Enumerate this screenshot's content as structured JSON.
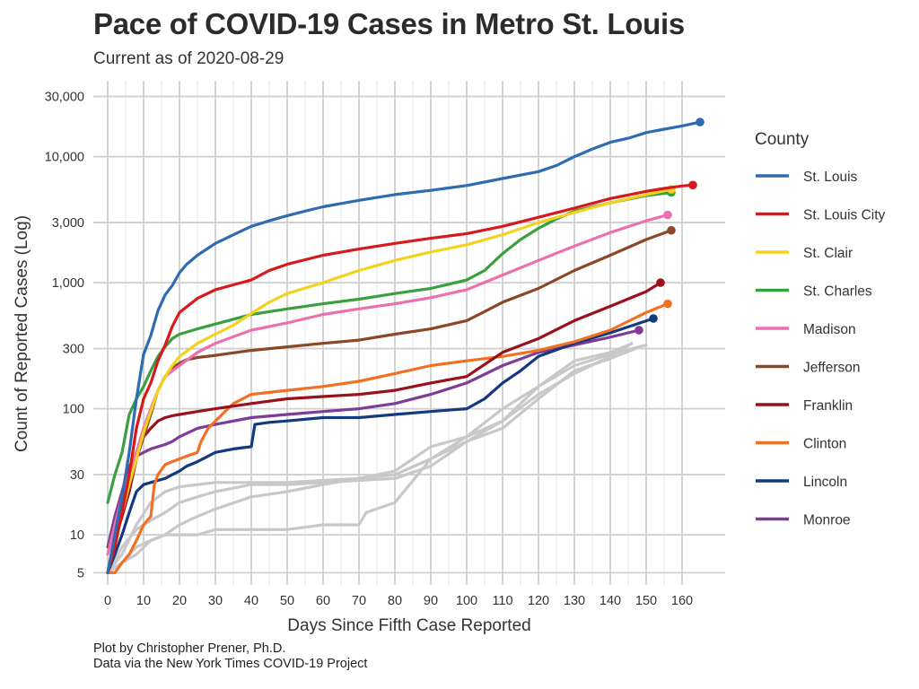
{
  "title": "Pace of COVID-19 Cases in Metro St. Louis",
  "subtitle": "Current as of 2020-08-29",
  "caption": [
    "Plot by Christopher Prener, Ph.D.",
    "Data via the New York Times COVID-19 Project"
  ],
  "chart_data": {
    "type": "line",
    "title": "Pace of COVID-19 Cases in Metro St. Louis",
    "subtitle": "Current as of 2020-08-29",
    "xlabel": "Days Since Fifth Case Reported",
    "ylabel": "Count of Reported Cases (Log)",
    "y_scale": "log",
    "xlim": [
      -4,
      172
    ],
    "ylim": [
      4,
      40000
    ],
    "x_ticks": [
      0,
      10,
      20,
      30,
      40,
      50,
      60,
      70,
      80,
      90,
      100,
      110,
      120,
      130,
      140,
      150,
      160
    ],
    "y_ticks": [
      5,
      10,
      30,
      100,
      300,
      1000,
      3000,
      10000,
      30000
    ],
    "y_tick_labels": [
      "5",
      "10",
      "30",
      "100",
      "300",
      "1,000",
      "3,000",
      "10,000",
      "30,000"
    ],
    "grid": true,
    "legend_title": "County",
    "legend_position": "right",
    "series": [
      {
        "name": "St. Louis",
        "color": "#2e6bb0",
        "x": [
          0,
          2,
          4,
          6,
          8,
          10,
          12,
          14,
          16,
          18,
          20,
          22,
          25,
          30,
          35,
          40,
          45,
          50,
          55,
          60,
          70,
          80,
          90,
          100,
          110,
          120,
          125,
          130,
          135,
          140,
          145,
          150,
          155,
          160,
          165
        ],
        "y": [
          5,
          10,
          20,
          45,
          120,
          270,
          380,
          600,
          800,
          950,
          1200,
          1400,
          1650,
          2050,
          2400,
          2800,
          3100,
          3400,
          3700,
          4000,
          4500,
          5000,
          5400,
          5900,
          6700,
          7600,
          8500,
          10000,
          11500,
          13000,
          14000,
          15500,
          16500,
          17500,
          18800
        ]
      },
      {
        "name": "St. Louis City",
        "color": "#d7191c",
        "x": [
          0,
          2,
          4,
          6,
          8,
          10,
          12,
          14,
          16,
          18,
          20,
          25,
          30,
          40,
          45,
          50,
          60,
          70,
          80,
          90,
          100,
          110,
          120,
          130,
          140,
          150,
          155,
          160,
          163
        ],
        "y": [
          5,
          8,
          15,
          30,
          70,
          120,
          160,
          240,
          320,
          450,
          580,
          750,
          880,
          1050,
          1250,
          1400,
          1650,
          1850,
          2050,
          2250,
          2450,
          2800,
          3300,
          3900,
          4650,
          5300,
          5600,
          5850,
          5950
        ]
      },
      {
        "name": "St. Clair",
        "color": "#f2d21d",
        "x": [
          0,
          2,
          4,
          6,
          8,
          10,
          12,
          14,
          16,
          18,
          20,
          25,
          30,
          35,
          40,
          45,
          50,
          60,
          70,
          80,
          90,
          100,
          110,
          120,
          130,
          140,
          150,
          157
        ],
        "y": [
          5,
          9,
          15,
          25,
          40,
          65,
          95,
          140,
          180,
          220,
          260,
          330,
          390,
          460,
          570,
          700,
          820,
          1000,
          1250,
          1500,
          1750,
          2000,
          2400,
          3000,
          3600,
          4300,
          5000,
          5500
        ]
      },
      {
        "name": "St. Charles",
        "color": "#3a9f3e",
        "x": [
          0,
          2,
          4,
          6,
          8,
          10,
          12,
          14,
          16,
          18,
          20,
          25,
          30,
          40,
          50,
          60,
          70,
          80,
          90,
          100,
          105,
          110,
          115,
          120,
          125,
          130,
          140,
          150,
          157
        ],
        "y": [
          18,
          30,
          45,
          90,
          120,
          150,
          200,
          260,
          310,
          360,
          390,
          430,
          470,
          560,
          620,
          680,
          740,
          820,
          900,
          1050,
          1250,
          1700,
          2200,
          2700,
          3200,
          3700,
          4300,
          4900,
          5200
        ]
      },
      {
        "name": "Madison",
        "color": "#ec6fae",
        "x": [
          0,
          2,
          4,
          6,
          8,
          10,
          12,
          14,
          16,
          18,
          20,
          25,
          30,
          40,
          50,
          60,
          70,
          80,
          90,
          100,
          110,
          120,
          130,
          140,
          150,
          156
        ],
        "y": [
          7,
          12,
          20,
          30,
          45,
          70,
          100,
          140,
          180,
          200,
          220,
          280,
          330,
          420,
          480,
          560,
          620,
          680,
          760,
          880,
          1150,
          1500,
          1950,
          2500,
          3100,
          3450
        ]
      },
      {
        "name": "Jefferson",
        "color": "#8b4726",
        "x": [
          0,
          2,
          4,
          6,
          8,
          10,
          12,
          14,
          16,
          18,
          20,
          22,
          25,
          30,
          40,
          50,
          60,
          70,
          80,
          90,
          100,
          105,
          110,
          120,
          130,
          140,
          150,
          157
        ],
        "y": [
          5,
          9,
          18,
          30,
          45,
          60,
          90,
          140,
          180,
          210,
          230,
          245,
          255,
          265,
          290,
          310,
          330,
          350,
          390,
          430,
          500,
          590,
          700,
          900,
          1250,
          1650,
          2200,
          2600
        ]
      },
      {
        "name": "Franklin",
        "color": "#98111b",
        "x": [
          0,
          2,
          4,
          6,
          8,
          10,
          12,
          14,
          16,
          18,
          20,
          25,
          30,
          40,
          50,
          60,
          70,
          80,
          90,
          100,
          110,
          120,
          130,
          140,
          150,
          154
        ],
        "y": [
          5,
          9,
          14,
          22,
          40,
          60,
          70,
          80,
          85,
          88,
          90,
          95,
          100,
          110,
          120,
          125,
          130,
          140,
          160,
          180,
          280,
          360,
          500,
          650,
          850,
          1000
        ]
      },
      {
        "name": "Clinton",
        "color": "#f27024",
        "x": [
          0,
          2,
          4,
          6,
          8,
          10,
          12,
          13,
          14,
          16,
          18,
          20,
          22,
          25,
          26,
          27,
          28,
          30,
          35,
          40,
          50,
          60,
          70,
          80,
          90,
          100,
          110,
          120,
          130,
          140,
          150,
          156
        ],
        "y": [
          5,
          5,
          6,
          7,
          9,
          12,
          14,
          25,
          30,
          36,
          38,
          40,
          42,
          45,
          55,
          62,
          70,
          80,
          110,
          130,
          140,
          150,
          165,
          190,
          220,
          240,
          260,
          290,
          340,
          420,
          580,
          680
        ]
      },
      {
        "name": "Lincoln",
        "color": "#13397e",
        "x": [
          0,
          2,
          4,
          6,
          8,
          10,
          12,
          14,
          16,
          18,
          20,
          22,
          25,
          30,
          35,
          40,
          41,
          45,
          50,
          60,
          70,
          80,
          90,
          100,
          105,
          110,
          115,
          120,
          130,
          140,
          152
        ],
        "y": [
          5,
          7,
          10,
          15,
          22,
          25,
          26,
          27,
          28,
          30,
          32,
          35,
          38,
          45,
          48,
          50,
          75,
          78,
          80,
          85,
          85,
          90,
          95,
          100,
          120,
          160,
          200,
          260,
          330,
          400,
          520
        ]
      },
      {
        "name": "Monroe",
        "color": "#7d3c98",
        "x": [
          0,
          2,
          4,
          6,
          8,
          10,
          12,
          14,
          16,
          18,
          20,
          25,
          30,
          40,
          50,
          60,
          70,
          80,
          90,
          100,
          110,
          120,
          130,
          140,
          148
        ],
        "y": [
          8,
          14,
          22,
          35,
          42,
          45,
          48,
          50,
          52,
          55,
          60,
          70,
          75,
          85,
          90,
          95,
          100,
          110,
          130,
          160,
          220,
          280,
          320,
          370,
          420
        ]
      },
      {
        "name": "",
        "color": "#c8c8c8",
        "x": [
          0,
          4,
          8,
          12,
          16,
          20,
          25,
          30,
          40,
          50,
          60,
          70,
          80,
          90,
          100,
          110,
          120,
          130,
          140,
          150
        ],
        "y": [
          5,
          6,
          7,
          9,
          10,
          12,
          14,
          16,
          20,
          22,
          25,
          28,
          30,
          40,
          60,
          100,
          150,
          220,
          270,
          320
        ]
      },
      {
        "name": "",
        "color": "#c8c8c8",
        "x": [
          0,
          4,
          8,
          12,
          16,
          20,
          25,
          30,
          40,
          50,
          60,
          70,
          80,
          90,
          100,
          110,
          120,
          130,
          140,
          146
        ],
        "y": [
          5,
          8,
          11,
          13,
          15,
          18,
          20,
          22,
          25,
          25,
          26,
          27,
          28,
          35,
          55,
          80,
          130,
          190,
          260,
          330
        ]
      },
      {
        "name": "",
        "color": "#c8c8c8",
        "x": [
          0,
          4,
          8,
          12,
          16,
          20,
          25,
          30,
          40,
          50,
          60,
          70,
          80,
          90,
          100,
          110,
          120,
          130,
          140,
          145
        ],
        "y": [
          5,
          7,
          12,
          18,
          22,
          24,
          25,
          26,
          26,
          26,
          27,
          28,
          32,
          50,
          60,
          80,
          150,
          240,
          280,
          320
        ]
      },
      {
        "name": "",
        "color": "#c8c8c8",
        "x": [
          0,
          4,
          8,
          12,
          16,
          20,
          25,
          30,
          40,
          50,
          60,
          70,
          72,
          80,
          90,
          100,
          110,
          120,
          130,
          140,
          147
        ],
        "y": [
          5,
          6,
          8,
          9,
          10,
          10,
          10,
          11,
          11,
          11,
          12,
          12,
          15,
          18,
          40,
          55,
          70,
          120,
          200,
          250,
          300
        ]
      }
    ]
  }
}
